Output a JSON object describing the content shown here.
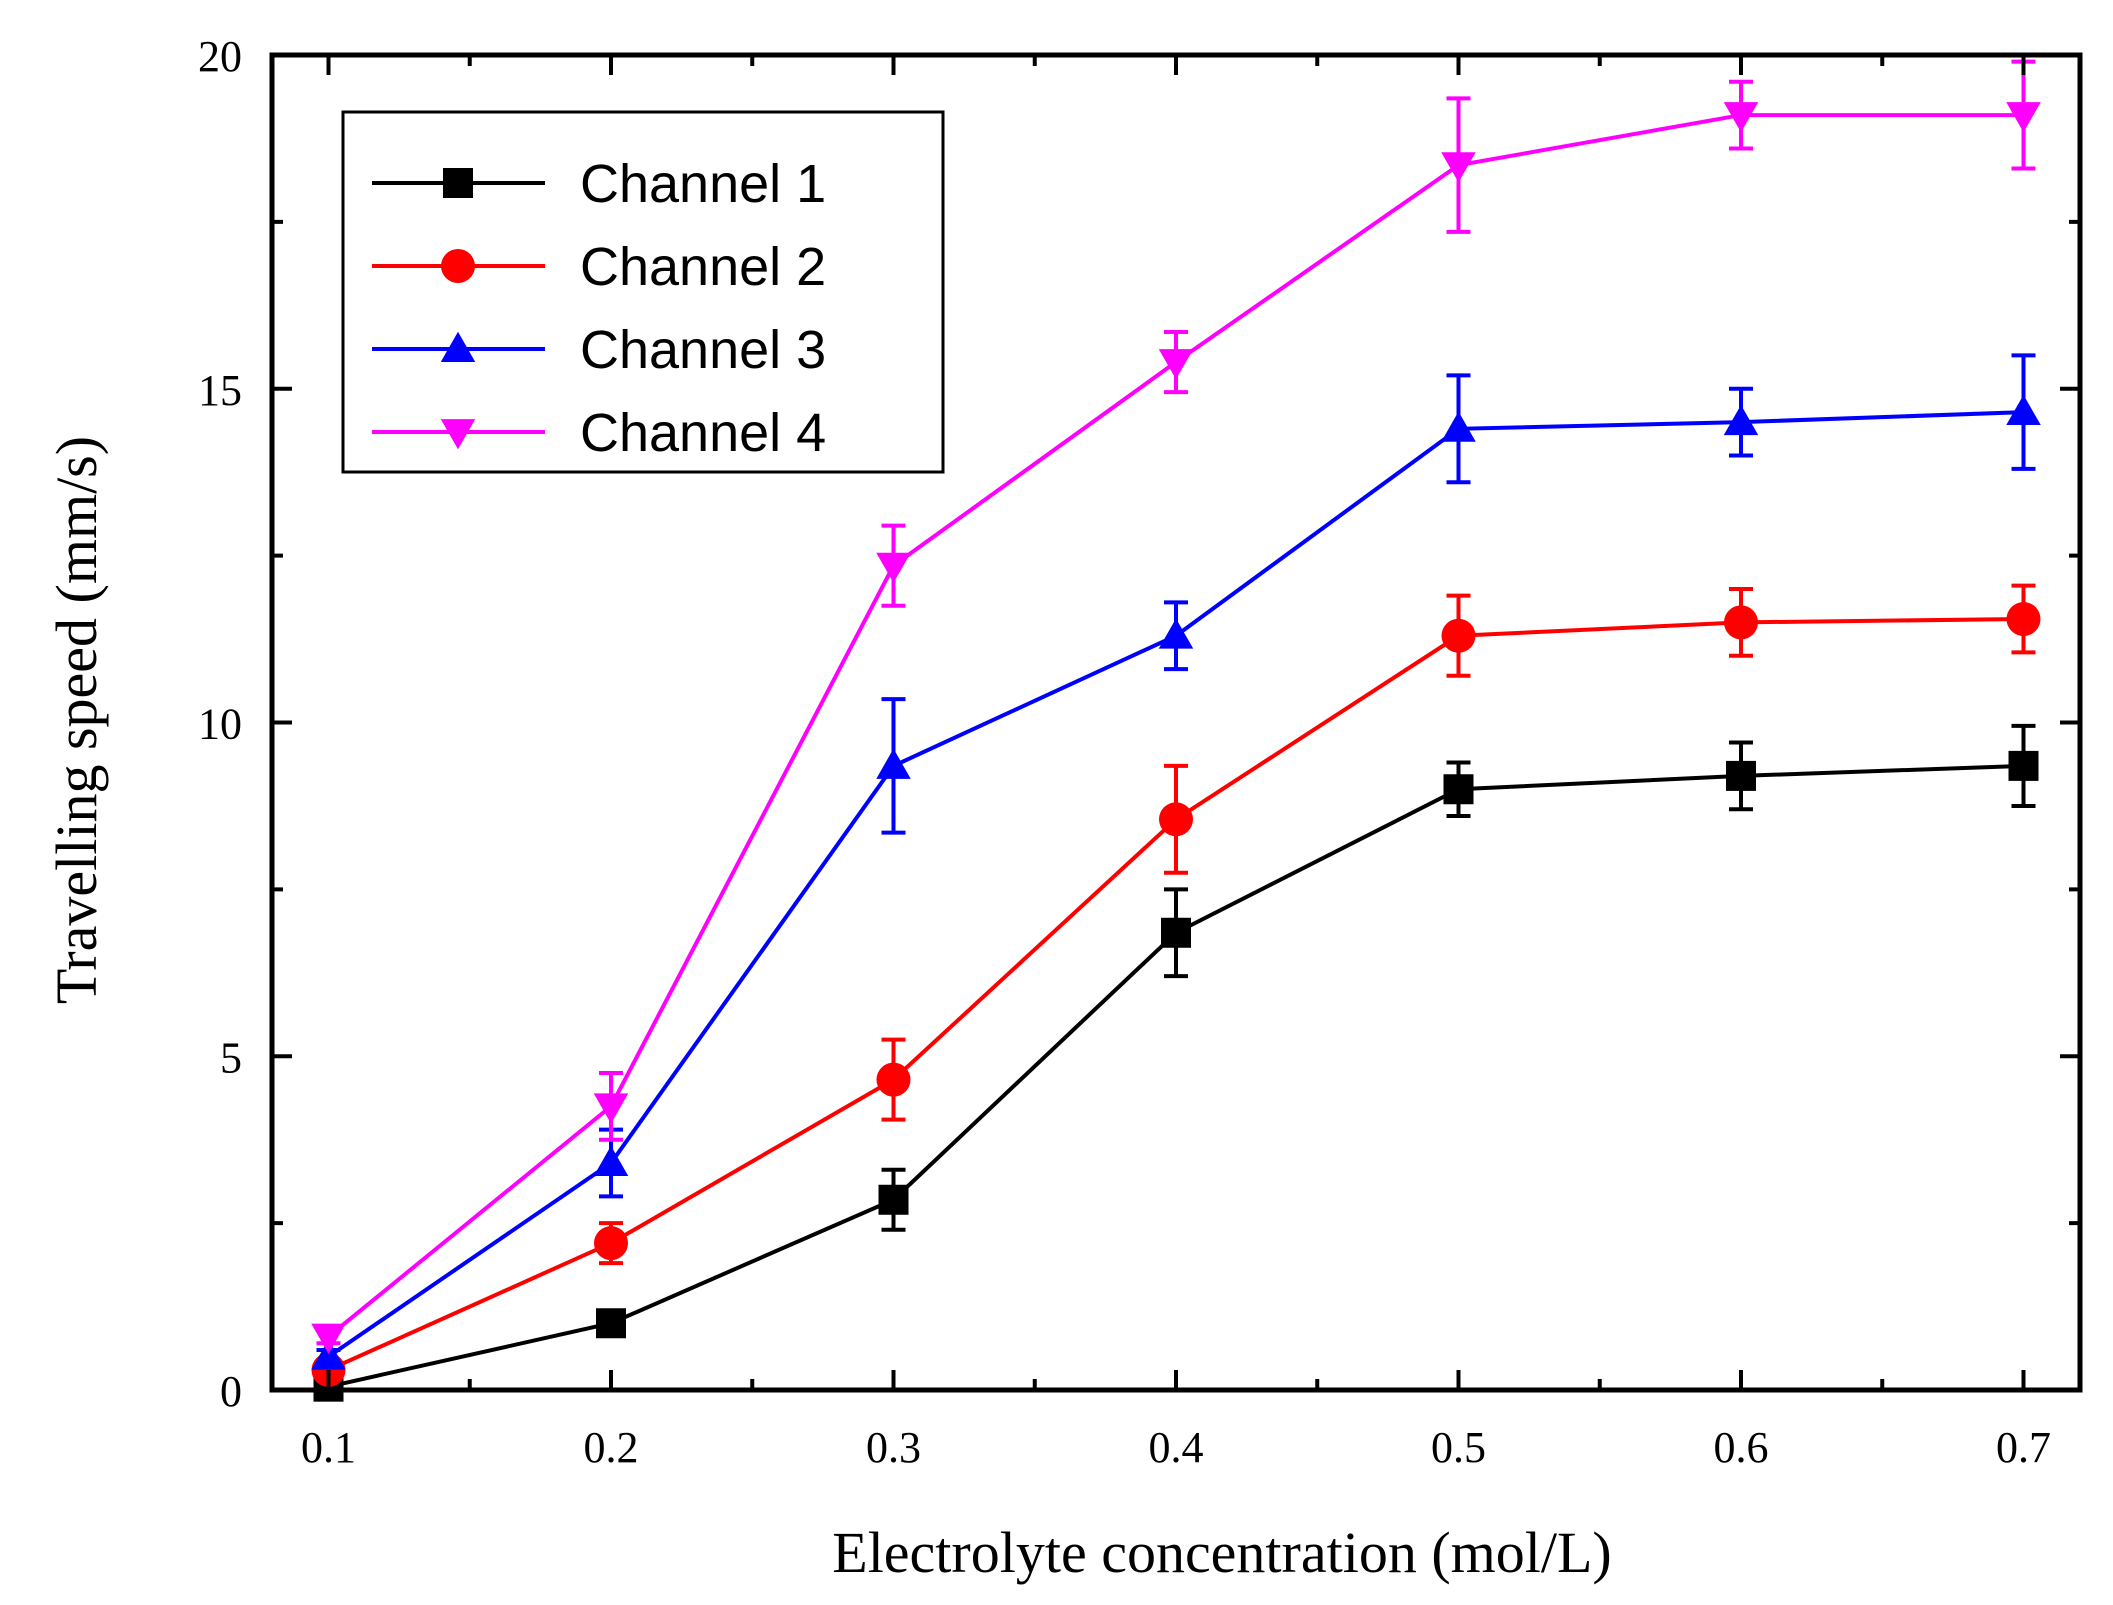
{
  "chart_data": {
    "type": "line",
    "title": "",
    "xlabel": "Electrolyte concentration (mol/L)",
    "ylabel": "Travelling speed (mm/s)",
    "xlim": [
      0.08,
      0.72
    ],
    "ylim": [
      0,
      20
    ],
    "xticks": [
      0.1,
      0.2,
      0.3,
      0.4,
      0.5,
      0.6,
      0.7
    ],
    "xtick_labels": [
      "0.1",
      "0.2",
      "0.3",
      "0.4",
      "0.5",
      "0.6",
      "0.7"
    ],
    "xminor": [
      0.15,
      0.25,
      0.35,
      0.45,
      0.55,
      0.65
    ],
    "yticks": [
      0,
      5,
      10,
      15,
      20
    ],
    "ytick_labels": [
      "0",
      "5",
      "10",
      "15",
      "20"
    ],
    "yminor": [
      2.5,
      7.5,
      12.5,
      17.5
    ],
    "grid": false,
    "legend_position": "top-left",
    "x": [
      0.1,
      0.2,
      0.3,
      0.4,
      0.5,
      0.6,
      0.7
    ],
    "series": [
      {
        "name": "Channel 1",
        "color": "#000000",
        "marker": "square",
        "values": [
          0.05,
          1.0,
          2.85,
          6.85,
          9.0,
          9.2,
          9.35
        ],
        "errors": [
          0.1,
          0.1,
          0.45,
          0.65,
          0.4,
          0.5,
          0.6
        ]
      },
      {
        "name": "Channel 2",
        "color": "#ff0000",
        "marker": "circle",
        "values": [
          0.3,
          2.2,
          4.65,
          8.55,
          11.3,
          11.5,
          11.55
        ],
        "errors": [
          0.1,
          0.3,
          0.6,
          0.8,
          0.6,
          0.5,
          0.5
        ]
      },
      {
        "name": "Channel 3",
        "color": "#0000ff",
        "marker": "triangle-up",
        "values": [
          0.5,
          3.4,
          9.35,
          11.3,
          14.4,
          14.5,
          14.65
        ],
        "errors": [
          0.1,
          0.5,
          1.0,
          0.5,
          0.8,
          0.5,
          0.85
        ]
      },
      {
        "name": "Channel 4",
        "color": "#ff00ff",
        "marker": "triangle-down",
        "values": [
          0.8,
          4.25,
          12.35,
          15.4,
          18.35,
          19.1,
          19.1
        ],
        "errors": [
          0.1,
          0.5,
          0.6,
          0.45,
          1.0,
          0.5,
          0.8
        ]
      }
    ]
  }
}
